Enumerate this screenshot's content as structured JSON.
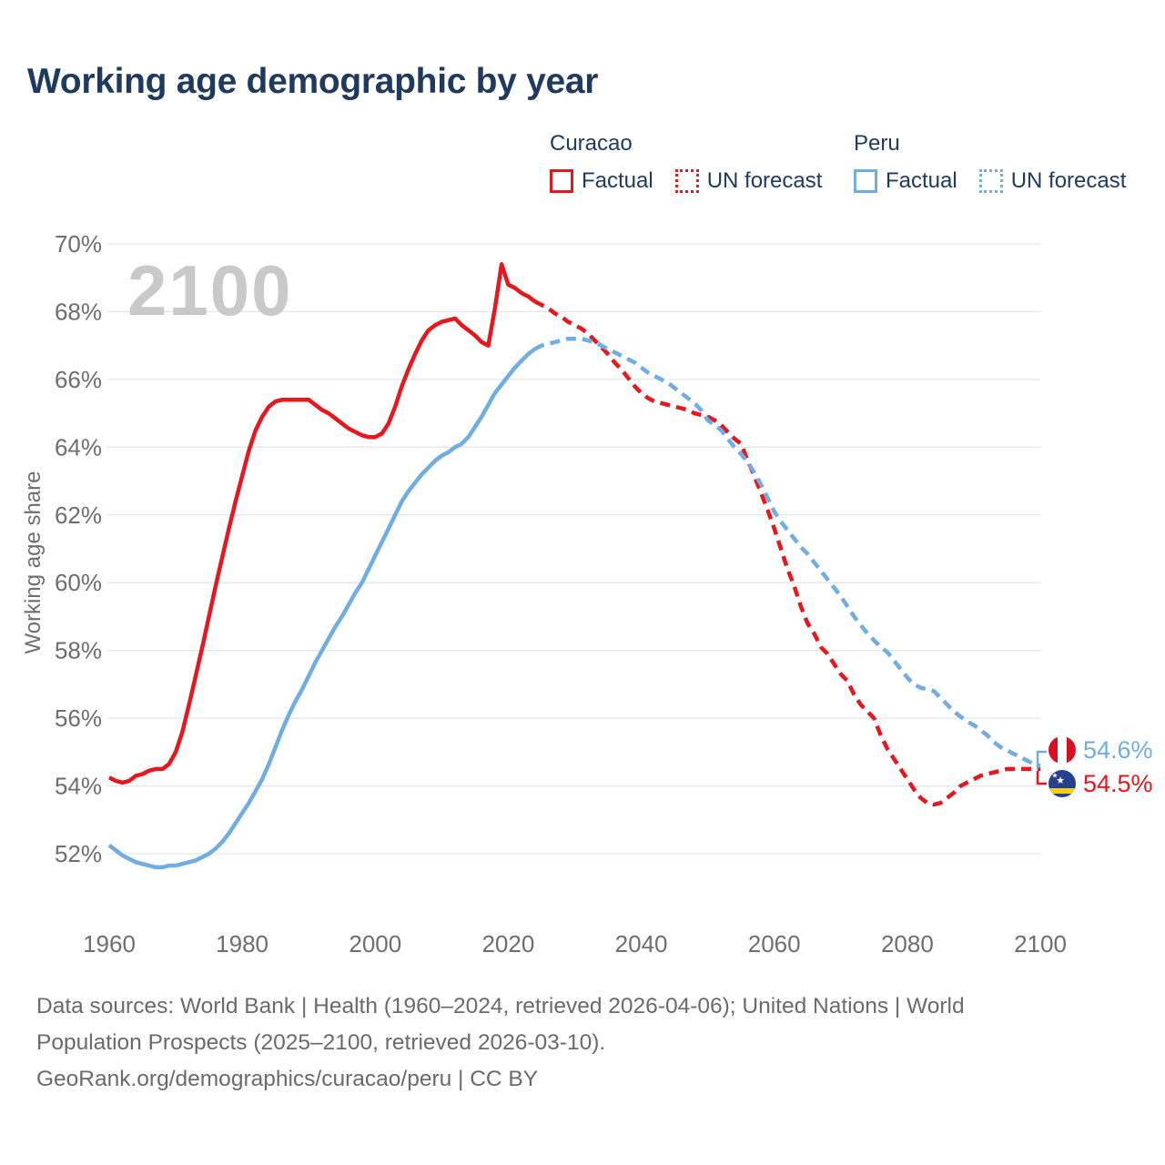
{
  "title": "Working age demographic by year",
  "watermark": "2100",
  "y_axis_title": "Working age share",
  "legend": {
    "groups": [
      {
        "label": "Curacao",
        "color": "#e8161d",
        "items": [
          {
            "label": "Factual",
            "style": "solid"
          },
          {
            "label": "UN forecast",
            "style": "dotted"
          }
        ]
      },
      {
        "label": "Peru",
        "color": "#70ade4",
        "items": [
          {
            "label": "Factual",
            "style": "solid"
          },
          {
            "label": "UN forecast",
            "style": "dotted"
          }
        ]
      }
    ]
  },
  "chart_data": {
    "type": "line",
    "title": "Working age demographic by year",
    "xlabel": "",
    "ylabel": "Working age share",
    "x_ticks": [
      1960,
      1980,
      2000,
      2020,
      2040,
      2060,
      2080,
      2100
    ],
    "y_ticks": [
      70,
      68,
      66,
      64,
      62,
      60,
      58,
      56,
      54,
      52
    ],
    "y_tick_suffix": "%",
    "xlim": [
      1960,
      2100
    ],
    "ylim": [
      52,
      70
    ],
    "grid": "horizontal",
    "series": [
      {
        "id": "curacao-factual",
        "name": "Curacao Factual",
        "country": "Curacao",
        "segment": "Factual",
        "color": "#e8161d",
        "style": "solid",
        "x_start": 1960,
        "values": [
          54.25,
          54.15,
          54.1,
          54.15,
          54.3,
          54.35,
          54.45,
          54.5,
          54.5,
          54.65,
          55.0,
          55.6,
          56.4,
          57.25,
          58.1,
          59.0,
          59.9,
          60.75,
          61.6,
          62.4,
          63.15,
          63.9,
          64.5,
          64.9,
          65.2,
          65.35,
          65.4,
          65.4,
          65.4,
          65.4,
          65.4,
          65.25,
          65.1,
          65.0,
          64.85,
          64.7,
          64.55,
          64.45,
          64.35,
          64.3,
          64.3,
          64.4,
          64.7,
          65.2,
          65.8,
          66.3,
          66.75,
          67.15,
          67.45,
          67.6,
          67.7,
          67.75,
          67.8,
          67.6,
          67.45,
          67.3,
          67.1,
          67.0,
          68.1,
          69.4,
          68.8,
          68.7,
          68.55,
          68.45,
          68.3
        ]
      },
      {
        "id": "curacao-forecast",
        "name": "Curacao UN forecast",
        "country": "Curacao",
        "segment": "UN forecast",
        "color": "#e8161d",
        "style": "dashed",
        "x_start": 2024,
        "values": [
          68.3,
          68.2,
          68.1,
          67.95,
          67.85,
          67.7,
          67.6,
          67.5,
          67.35,
          67.15,
          66.95,
          66.75,
          66.5,
          66.3,
          66.05,
          65.8,
          65.6,
          65.45,
          65.35,
          65.3,
          65.25,
          65.2,
          65.15,
          65.1,
          65.0,
          64.95,
          64.9,
          64.8,
          64.65,
          64.45,
          64.25,
          64.1,
          63.6,
          63.15,
          62.65,
          62.15,
          61.6,
          61.0,
          60.4,
          59.9,
          59.3,
          58.8,
          58.5,
          58.1,
          57.9,
          57.6,
          57.3,
          57.1,
          56.7,
          56.4,
          56.2,
          56.0,
          55.5,
          55.1,
          54.8,
          54.5,
          54.2,
          53.9,
          53.65,
          53.5,
          53.45,
          53.5,
          53.65,
          53.8,
          54.0,
          54.1,
          54.2,
          54.3,
          54.35,
          54.4,
          54.45,
          54.5,
          54.5,
          54.5,
          54.5,
          54.5,
          54.5
        ]
      },
      {
        "id": "peru-factual",
        "name": "Peru Factual",
        "country": "Peru",
        "segment": "Factual",
        "color": "#70ade4",
        "style": "solid",
        "x_start": 1960,
        "values": [
          52.25,
          52.1,
          51.95,
          51.85,
          51.75,
          51.7,
          51.65,
          51.6,
          51.6,
          51.65,
          51.65,
          51.7,
          51.75,
          51.8,
          51.9,
          52.0,
          52.15,
          52.35,
          52.6,
          52.9,
          53.2,
          53.5,
          53.85,
          54.2,
          54.65,
          55.15,
          55.65,
          56.1,
          56.5,
          56.85,
          57.25,
          57.65,
          58.0,
          58.35,
          58.7,
          59.0,
          59.35,
          59.7,
          60.0,
          60.4,
          60.8,
          61.2,
          61.6,
          62.0,
          62.4,
          62.7,
          62.95,
          63.2,
          63.4,
          63.6,
          63.75,
          63.85,
          64.0,
          64.1,
          64.3,
          64.6,
          64.9,
          65.25,
          65.6,
          65.85,
          66.1,
          66.35,
          66.55,
          66.75,
          66.9
        ]
      },
      {
        "id": "peru-forecast",
        "name": "Peru UN forecast",
        "country": "Peru",
        "segment": "UN forecast",
        "color": "#70ade4",
        "style": "dashed",
        "x_start": 2024,
        "values": [
          66.9,
          67.0,
          67.05,
          67.1,
          67.15,
          67.2,
          67.2,
          67.2,
          67.15,
          67.1,
          67.0,
          66.9,
          66.8,
          66.7,
          66.6,
          66.5,
          66.35,
          66.2,
          66.1,
          66.0,
          65.9,
          65.75,
          65.6,
          65.45,
          65.3,
          65.1,
          64.8,
          64.65,
          64.5,
          64.25,
          64.0,
          63.8,
          63.55,
          63.25,
          62.9,
          62.5,
          62.1,
          61.8,
          61.55,
          61.3,
          61.05,
          60.85,
          60.6,
          60.35,
          60.1,
          59.85,
          59.6,
          59.3,
          59.0,
          58.75,
          58.5,
          58.3,
          58.1,
          57.95,
          57.7,
          57.45,
          57.2,
          57.0,
          56.9,
          56.85,
          56.8,
          56.6,
          56.4,
          56.2,
          56.05,
          55.9,
          55.8,
          55.65,
          55.5,
          55.3,
          55.15,
          55.05,
          54.95,
          54.85,
          54.75,
          54.65,
          54.6
        ]
      }
    ],
    "end_labels": [
      {
        "id": "peru",
        "country": "Peru",
        "value": "54.6%",
        "flag": "peru-flag",
        "color": "#70ade4"
      },
      {
        "id": "curacao",
        "country": "Curacao",
        "value": "54.5%",
        "flag": "curacao-flag",
        "color": "#e8161d"
      }
    ]
  },
  "footer": {
    "lines": [
      "Data sources: World Bank | Health (1960–2024, retrieved 2026-04-06); United Nations | World",
      "Population Prospects (2025–2100, retrieved 2026-03-10).",
      "GeoRank.org/demographics/curacao/peru | CC BY"
    ]
  }
}
